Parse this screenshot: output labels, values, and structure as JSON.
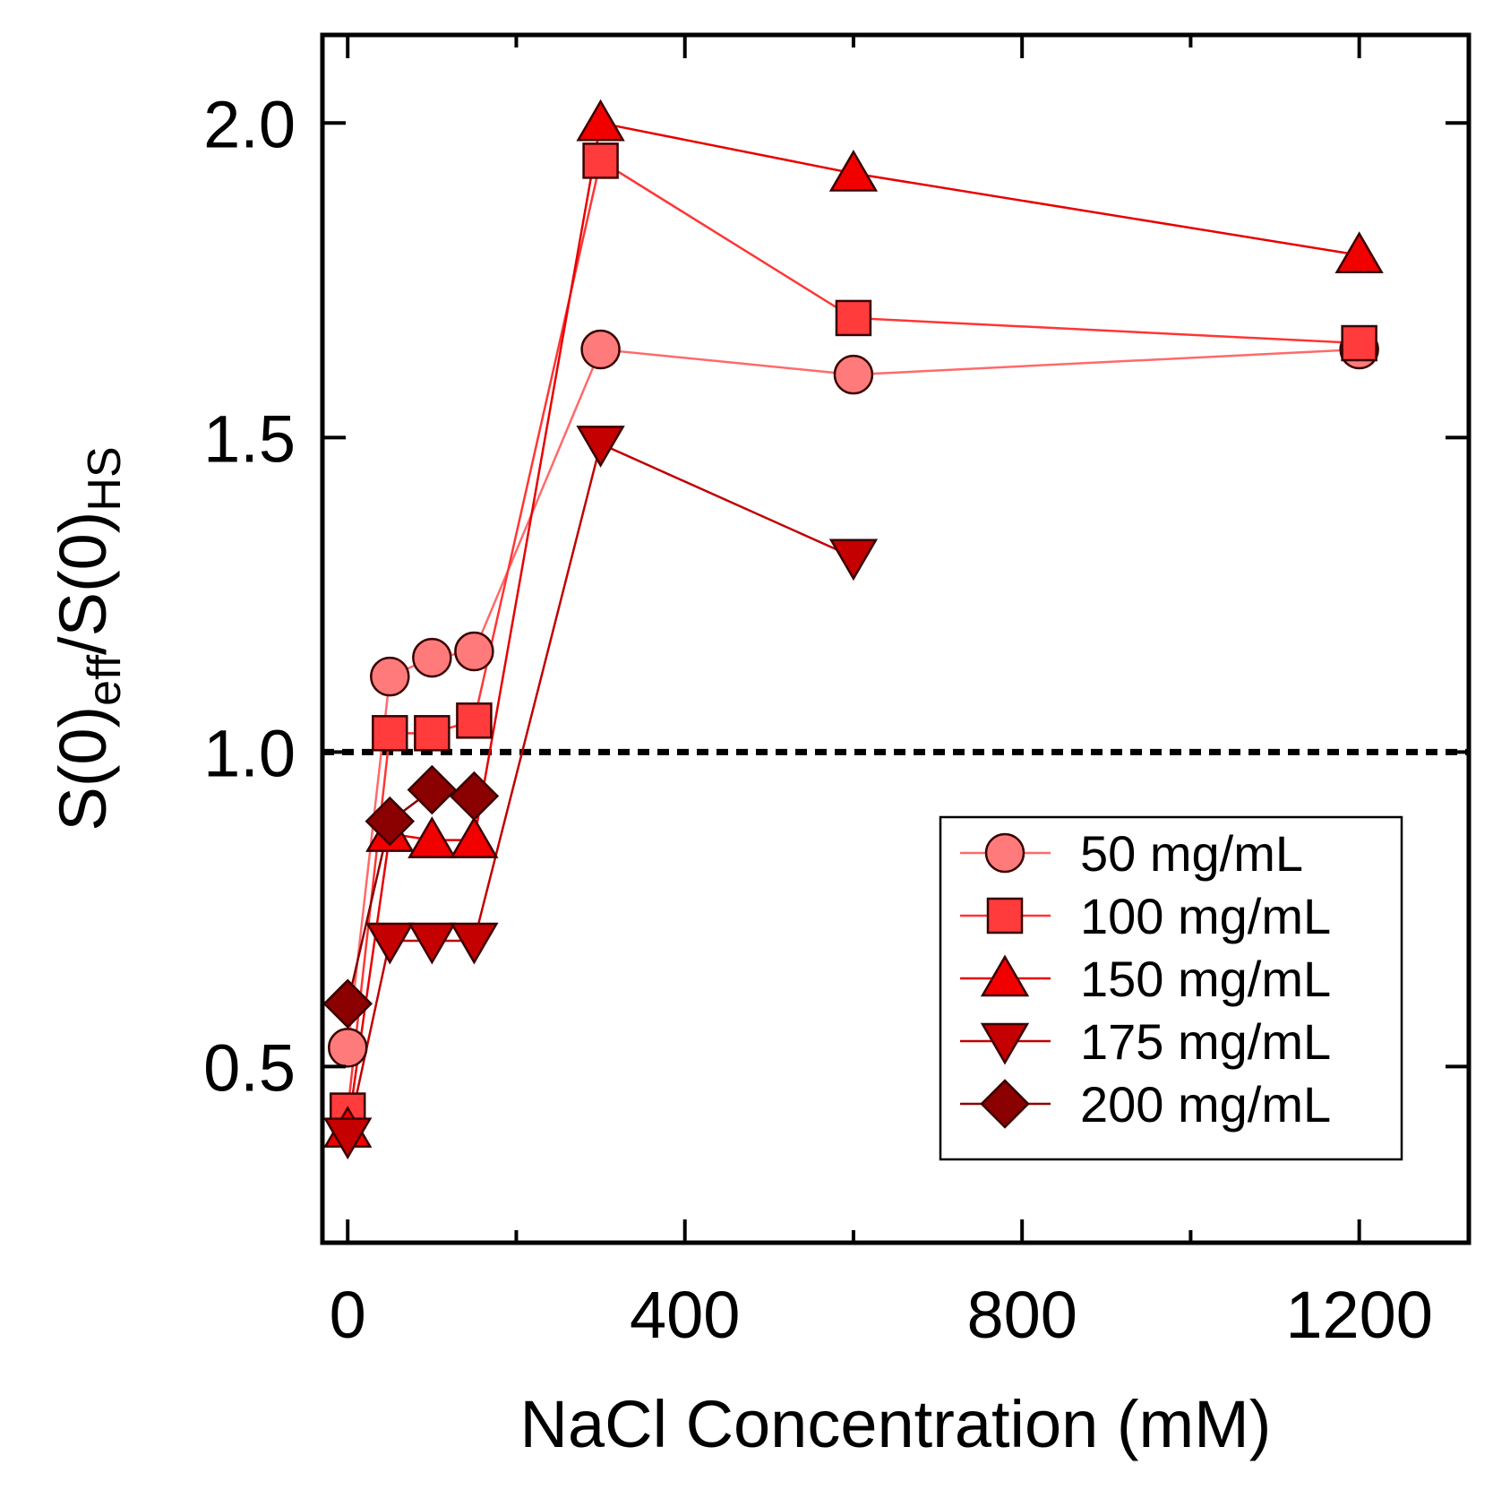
{
  "chart_data": {
    "type": "line",
    "title": "",
    "xlabel": "NaCl Concentration (mM)",
    "ylabel": {
      "base": "S(0)",
      "sub1": "eff",
      "sep": "/S(0)",
      "sub2": "HS"
    },
    "xlim": [
      -30,
      1330
    ],
    "ylim": [
      0.22,
      2.14
    ],
    "x_ticks": [
      0,
      400,
      800,
      1200
    ],
    "x_tick_labels": [
      "0",
      "400",
      "800",
      "1200"
    ],
    "x_minor_ticks": [
      200,
      600,
      1000
    ],
    "y_ticks": [
      0.5,
      1.0,
      1.5,
      2.0
    ],
    "y_tick_labels": [
      "0.5",
      "1.0",
      "1.5",
      "2.0"
    ],
    "reference_line": {
      "y": 1.0,
      "style": "dotted"
    },
    "legend_position": "lower-right",
    "series": [
      {
        "name": "50 mg/mL",
        "marker": "circle",
        "fill": "#ff7b7b",
        "line": "#ff6a6a",
        "points": [
          [
            0,
            0.53
          ],
          [
            50,
            1.12
          ],
          [
            100,
            1.15
          ],
          [
            150,
            1.16
          ],
          [
            300,
            1.64
          ],
          [
            600,
            1.6
          ],
          [
            1200,
            1.64
          ]
        ]
      },
      {
        "name": "100 mg/mL",
        "marker": "square",
        "fill": "#ff3b3b",
        "line": "#ff3535",
        "points": [
          [
            0,
            0.43
          ],
          [
            50,
            1.03
          ],
          [
            100,
            1.03
          ],
          [
            150,
            1.05
          ],
          [
            300,
            1.94
          ],
          [
            600,
            1.69
          ],
          [
            1200,
            1.65
          ]
        ]
      },
      {
        "name": "150 mg/mL",
        "marker": "triangle-up",
        "fill": "#f20000",
        "line": "#e80000",
        "points": [
          [
            0,
            0.4
          ],
          [
            50,
            0.87
          ],
          [
            100,
            0.86
          ],
          [
            150,
            0.86
          ],
          [
            300,
            2.0
          ],
          [
            600,
            1.92
          ],
          [
            1200,
            1.79
          ]
        ]
      },
      {
        "name": "175 mg/mL",
        "marker": "triangle-down",
        "fill": "#c40000",
        "line": "#c00000",
        "points": [
          [
            0,
            0.39
          ],
          [
            50,
            0.7
          ],
          [
            100,
            0.7
          ],
          [
            150,
            0.7
          ],
          [
            300,
            1.49
          ],
          [
            600,
            1.31
          ]
        ]
      },
      {
        "name": "200 mg/mL",
        "marker": "diamond",
        "fill": "#8b0000",
        "line": "#8b0000",
        "points": [
          [
            0,
            0.6
          ],
          [
            50,
            0.89
          ],
          [
            100,
            0.94
          ],
          [
            150,
            0.93
          ]
        ]
      }
    ]
  }
}
